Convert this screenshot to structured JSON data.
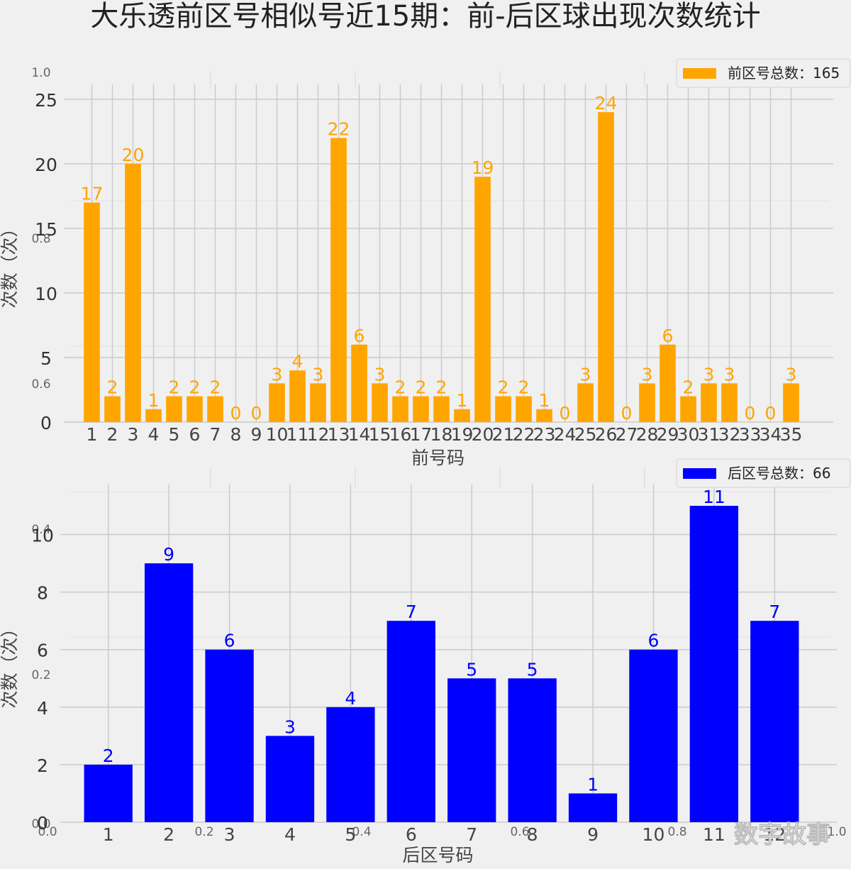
{
  "title": "大乐透前区号相似号近15期：前-后区球出现次数统计",
  "watermark": "数字故事",
  "chart_data": [
    {
      "type": "bar",
      "xlabel": "前号码",
      "ylabel": "次数（次）",
      "legend": "前区号总数：165",
      "legend_position": "top-right",
      "color": "#FFA500",
      "grid": true,
      "categories": [
        "1",
        "2",
        "3",
        "4",
        "5",
        "6",
        "7",
        "8",
        "9",
        "10",
        "11",
        "12",
        "13",
        "14",
        "15",
        "16",
        "17",
        "18",
        "19",
        "20",
        "21",
        "22",
        "23",
        "24",
        "25",
        "26",
        "27",
        "28",
        "29",
        "30",
        "31",
        "32",
        "33",
        "34",
        "35"
      ],
      "values": [
        17,
        2,
        20,
        1,
        2,
        2,
        2,
        0,
        0,
        3,
        4,
        3,
        22,
        6,
        3,
        2,
        2,
        2,
        1,
        19,
        2,
        2,
        1,
        0,
        3,
        24,
        0,
        3,
        6,
        2,
        3,
        3,
        0,
        0,
        3
      ],
      "ylim": [
        0,
        24.5
      ],
      "yticks": [
        "0",
        "5",
        "10",
        "15",
        "20",
        "25"
      ]
    },
    {
      "type": "bar",
      "xlabel": "后区号码",
      "ylabel": "次数（次）",
      "legend": "后区号总数：66",
      "legend_position": "top-right",
      "color": "#0000FF",
      "grid": true,
      "categories": [
        "1",
        "2",
        "3",
        "4",
        "5",
        "6",
        "7",
        "8",
        "9",
        "10",
        "11",
        "12"
      ],
      "values": [
        2,
        9,
        6,
        3,
        4,
        7,
        5,
        5,
        1,
        6,
        11,
        7
      ],
      "ylim": [
        0,
        11
      ],
      "yticks": [
        "0",
        "2",
        "4",
        "6",
        "8",
        "10"
      ]
    }
  ],
  "background_axis": {
    "y_ticks": [
      "0.0",
      "0.2",
      "0.4",
      "0.6",
      "0.8",
      "1.0"
    ],
    "x_ticks": [
      "0.0",
      "0.2",
      "0.4",
      "0.6",
      "0.8",
      "1.0"
    ]
  }
}
